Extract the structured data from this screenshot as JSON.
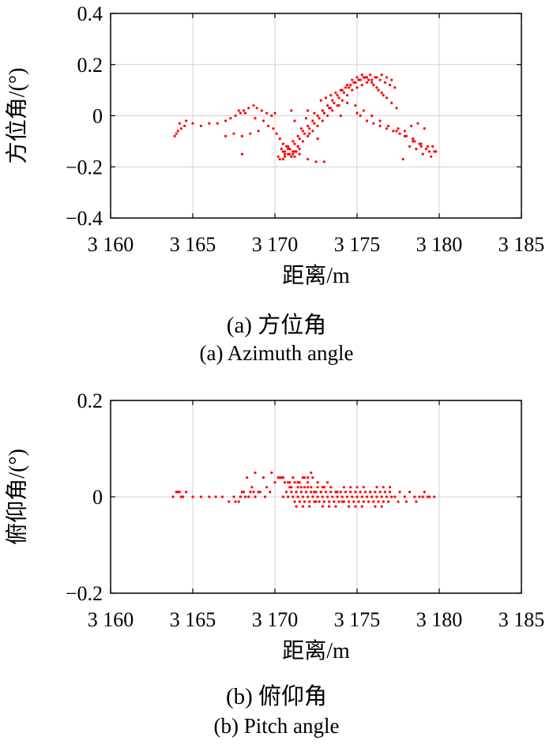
{
  "chart_data": [
    {
      "type": "scatter",
      "title": "",
      "xlabel": "距离/m",
      "ylabel": "方位角/(°)",
      "xlim": [
        3160,
        3185
      ],
      "ylim": [
        -0.4,
        0.4
      ],
      "xticks": [
        3160,
        3165,
        3170,
        3175,
        3180,
        3185
      ],
      "xtick_labels": [
        "3 160",
        "3 165",
        "3 170",
        "3 175",
        "3 180",
        "3 185"
      ],
      "yticks": [
        -0.4,
        -0.2,
        0,
        0.2,
        0.4
      ],
      "ytick_labels": [
        "−0.4",
        "−0.2",
        "0",
        "0.2",
        "0.4"
      ],
      "grid": true,
      "marker_color": "#ff0000",
      "caption_cn": "(a) 方位角",
      "caption_en": "(a) Azimuth angle",
      "series": [
        {
          "x": [
            3163.9,
            3164.1,
            3164.3,
            3164.5,
            3164.2,
            3164.6,
            3164.0,
            3165.0,
            3165.5,
            3166.0,
            3166.5,
            3167.0,
            3167.3,
            3167.6,
            3167.9,
            3168.1,
            3168.4,
            3168.7,
            3168.9,
            3169.2,
            3169.5,
            3169.8,
            3167.0,
            3167.5,
            3168.0,
            3168.5,
            3169.0,
            3167.8,
            3168.2,
            3168.8,
            3169.3,
            3169.6,
            3169.9,
            3170.1,
            3170.3,
            3170.5,
            3170.8,
            3171.1,
            3171.4,
            3171.7,
            3172.0,
            3172.3,
            3172.6,
            3172.9,
            3173.2,
            3173.5,
            3173.8,
            3174.1,
            3174.4,
            3174.7,
            3175.0,
            3175.3,
            3175.6,
            3175.9,
            3176.2,
            3176.5,
            3176.8,
            3177.1,
            3170.6,
            3170.9,
            3171.2,
            3171.5,
            3171.8,
            3172.1,
            3172.4,
            3172.7,
            3173.0,
            3173.3,
            3173.6,
            3173.9,
            3174.2,
            3174.5,
            3174.8,
            3175.1,
            3175.4,
            3175.7,
            3176.0,
            3176.3,
            3176.6,
            3170.2,
            3170.5,
            3170.8,
            3171.1,
            3171.4,
            3171.7,
            3172.0,
            3172.3,
            3172.6,
            3172.9,
            3173.2,
            3173.5,
            3173.8,
            3174.1,
            3174.4,
            3174.7,
            3175.0,
            3175.3,
            3175.6,
            3175.9,
            3176.2,
            3176.5,
            3176.8,
            3177.1,
            3177.4,
            3170.4,
            3170.6,
            3170.8,
            3171.0,
            3171.2,
            3171.4,
            3170.7,
            3170.9,
            3171.1,
            3171.3,
            3170.5,
            3171.0,
            3171.5,
            3172.0,
            3172.5,
            3173.0,
            3171.6,
            3172.1,
            3172.6,
            3171.2,
            3171.9,
            3172.4,
            3172.9,
            3173.4,
            3173.9,
            3174.4,
            3174.9,
            3175.4,
            3175.9,
            3176.4,
            3176.9,
            3177.4,
            3177.9,
            3178.4,
            3178.9,
            3179.4,
            3175.2,
            3175.6,
            3176.0,
            3176.4,
            3176.8,
            3177.2,
            3177.6,
            3178.0,
            3178.4,
            3178.8,
            3179.2,
            3179.6,
            3177.5,
            3177.9,
            3178.3,
            3178.7,
            3179.1,
            3178.5,
            3178.9,
            3179.3,
            3179.7,
            3179.0,
            3179.5,
            3179.8,
            3178.2,
            3178.6,
            3177.8,
            3170.0,
            3171.0,
            3172.0,
            3173.0,
            3174.0,
            3175.0,
            3170.3,
            3170.6,
            3170.9,
            3171.2,
            3171.5,
            3168.0,
            3172.8,
            3173.1,
            3173.4,
            3173.7,
            3174.0,
            3174.3,
            3174.6,
            3174.9,
            3175.2,
            3175.5,
            3175.8,
            3176.1,
            3176.4,
            3176.7,
            3177.0,
            3177.3
          ],
          "y": [
            -0.08,
            -0.06,
            -0.05,
            -0.04,
            -0.03,
            -0.02,
            -0.07,
            -0.03,
            -0.04,
            -0.03,
            -0.03,
            -0.02,
            -0.01,
            0.0,
            0.01,
            0.02,
            0.03,
            0.04,
            0.03,
            0.02,
            0.01,
            0.0,
            -0.08,
            -0.07,
            -0.08,
            -0.07,
            -0.06,
            0.02,
            0.01,
            -0.01,
            -0.02,
            -0.04,
            -0.05,
            -0.07,
            -0.09,
            -0.11,
            -0.13,
            -0.14,
            -0.12,
            -0.1,
            -0.08,
            -0.06,
            -0.04,
            -0.02,
            0.0,
            0.02,
            0.04,
            0.06,
            0.08,
            0.1,
            0.11,
            0.12,
            0.13,
            0.14,
            0.15,
            0.16,
            0.15,
            0.14,
            -0.15,
            -0.13,
            -0.11,
            -0.09,
            -0.07,
            -0.05,
            -0.03,
            -0.01,
            0.01,
            0.03,
            0.05,
            0.07,
            0.09,
            0.11,
            0.13,
            0.14,
            0.15,
            0.14,
            0.12,
            0.1,
            0.08,
            -0.16,
            -0.14,
            -0.12,
            -0.1,
            -0.08,
            -0.06,
            -0.04,
            -0.02,
            0.0,
            0.02,
            0.04,
            0.06,
            0.08,
            0.1,
            0.12,
            0.14,
            0.15,
            0.16,
            0.15,
            0.13,
            0.11,
            0.09,
            0.07,
            0.05,
            0.03,
            -0.13,
            -0.14,
            -0.15,
            -0.16,
            -0.14,
            -0.12,
            -0.12,
            -0.13,
            -0.15,
            -0.14,
            -0.17,
            -0.16,
            -0.15,
            -0.17,
            -0.18,
            -0.18,
            -0.05,
            -0.07,
            -0.09,
            -0.02,
            -0.01,
            0.01,
            0.02,
            0.03,
            0.04,
            0.05,
            0.04,
            0.02,
            0.0,
            -0.02,
            -0.04,
            -0.06,
            -0.08,
            -0.1,
            -0.12,
            -0.14,
            0.0,
            -0.02,
            -0.03,
            -0.04,
            -0.05,
            -0.06,
            -0.07,
            -0.08,
            -0.09,
            -0.11,
            -0.13,
            -0.12,
            -0.05,
            -0.06,
            -0.04,
            -0.03,
            -0.05,
            -0.1,
            -0.11,
            -0.12,
            -0.14,
            -0.15,
            -0.16,
            -0.14,
            -0.12,
            -0.13,
            -0.17,
            0.01,
            0.02,
            0.02,
            0.01,
            0.0,
            0.01,
            -0.17,
            -0.16,
            -0.15,
            -0.16,
            -0.13,
            -0.15,
            0.06,
            0.07,
            0.08,
            0.09,
            0.1,
            0.11,
            0.12,
            0.13,
            0.14,
            0.15,
            0.16,
            0.15,
            0.14,
            0.13,
            0.12,
            0.11
          ]
        }
      ]
    },
    {
      "type": "scatter",
      "title": "",
      "xlabel": "距离/m",
      "ylabel": "俯仰角/(°)",
      "xlim": [
        3160,
        3185
      ],
      "ylim": [
        -0.2,
        0.2
      ],
      "xticks": [
        3160,
        3165,
        3170,
        3175,
        3180,
        3185
      ],
      "xtick_labels": [
        "3 160",
        "3 165",
        "3 170",
        "3 175",
        "3 180",
        "3 185"
      ],
      "yticks": [
        -0.2,
        0,
        0.2
      ],
      "ytick_labels": [
        "−0.2",
        "0",
        "0.2"
      ],
      "grid": true,
      "marker_color": "#ff0000",
      "caption_cn": "(b) 俯仰角",
      "caption_en": "(b) Pitch angle",
      "series": [
        {
          "x": [
            3163.8,
            3164.0,
            3164.2,
            3164.4,
            3164.6,
            3164.1,
            3164.3,
            3165.0,
            3165.5,
            3166.0,
            3166.4,
            3166.8,
            3167.2,
            3167.6,
            3167.9,
            3168.2,
            3168.5,
            3168.8,
            3169.1,
            3169.4,
            3169.7,
            3167.5,
            3167.8,
            3168.1,
            3168.4,
            3168.7,
            3168.0,
            3168.6,
            3169.0,
            3169.5,
            3170.0,
            3170.3,
            3170.6,
            3170.9,
            3170.5,
            3170.8,
            3171.1,
            3171.4,
            3171.7,
            3172.0,
            3172.3,
            3172.6,
            3172.9,
            3173.2,
            3173.5,
            3173.8,
            3174.1,
            3174.4,
            3174.7,
            3175.0,
            3175.3,
            3175.6,
            3175.9,
            3176.2,
            3176.5,
            3176.8,
            3177.1,
            3170.7,
            3171.0,
            3171.3,
            3171.6,
            3171.9,
            3172.2,
            3172.5,
            3172.8,
            3173.1,
            3173.4,
            3173.7,
            3174.0,
            3174.3,
            3174.6,
            3174.9,
            3175.2,
            3175.5,
            3175.8,
            3176.1,
            3176.4,
            3176.7,
            3177.0,
            3171.2,
            3171.5,
            3171.8,
            3172.1,
            3172.4,
            3172.7,
            3173.0,
            3173.3,
            3173.6,
            3173.9,
            3174.2,
            3174.5,
            3174.8,
            3175.1,
            3175.4,
            3175.7,
            3176.0,
            3176.3,
            3176.6,
            3176.9,
            3171.0,
            3171.4,
            3171.8,
            3172.2,
            3172.6,
            3173.0,
            3173.4,
            3173.8,
            3174.2,
            3174.6,
            3175.0,
            3175.4,
            3175.8,
            3176.2,
            3176.6,
            3177.0,
            3171.3,
            3171.7,
            3172.1,
            3172.5,
            3172.9,
            3173.3,
            3173.7,
            3174.1,
            3174.5,
            3174.9,
            3175.3,
            3175.7,
            3176.1,
            3176.5,
            3176.9,
            3170.8,
            3171.1,
            3171.4,
            3171.7,
            3172.0,
            3172.3,
            3172.6,
            3172.9,
            3170.2,
            3170.5,
            3170.9,
            3171.2,
            3171.6,
            3172.0,
            3172.4,
            3172.8,
            3171.8,
            3172.2,
            3177.3,
            3177.6,
            3177.9,
            3178.2,
            3178.5,
            3178.8,
            3179.1,
            3179.4,
            3179.7,
            3177.5,
            3178.0,
            3178.6,
            3179.0,
            3179.3,
            3168.3,
            3168.8,
            3169.3,
            3169.8,
            3172.0,
            3173.2,
            3171.5,
            3170.4
          ],
          "y": [
            0.0,
            0.01,
            0.01,
            0.0,
            0.01,
            0.01,
            0.0,
            0.0,
            0.0,
            0.0,
            0.0,
            0.0,
            -0.01,
            -0.01,
            0.0,
            0.0,
            0.01,
            0.0,
            0.01,
            0.0,
            0.01,
            0.0,
            -0.01,
            0.01,
            0.0,
            0.01,
            0.01,
            0.02,
            0.01,
            0.02,
            0.03,
            0.04,
            0.03,
            0.02,
            0.0,
            0.0,
            0.0,
            0.0,
            0.0,
            0.0,
            0.0,
            0.0,
            0.0,
            0.0,
            0.0,
            0.0,
            0.0,
            0.0,
            0.0,
            0.0,
            0.0,
            0.0,
            0.0,
            0.0,
            0.0,
            0.0,
            0.0,
            0.01,
            0.01,
            0.01,
            0.01,
            0.01,
            0.01,
            0.01,
            0.01,
            0.01,
            0.01,
            0.01,
            0.01,
            0.01,
            0.01,
            0.01,
            0.01,
            0.01,
            0.01,
            0.01,
            0.01,
            0.01,
            0.01,
            -0.01,
            -0.01,
            -0.01,
            -0.01,
            -0.01,
            -0.01,
            -0.01,
            -0.01,
            -0.01,
            -0.01,
            -0.01,
            -0.01,
            -0.01,
            -0.01,
            -0.01,
            -0.01,
            -0.01,
            -0.01,
            -0.01,
            -0.01,
            0.02,
            0.02,
            0.02,
            0.02,
            0.02,
            0.02,
            0.02,
            0.01,
            0.02,
            0.02,
            0.02,
            0.02,
            0.01,
            0.02,
            0.02,
            0.02,
            -0.02,
            -0.02,
            -0.02,
            -0.01,
            -0.02,
            -0.02,
            -0.02,
            -0.01,
            -0.02,
            -0.02,
            -0.02,
            -0.01,
            -0.02,
            -0.02,
            -0.01,
            0.03,
            0.04,
            0.03,
            0.04,
            0.03,
            0.04,
            0.03,
            0.02,
            0.04,
            0.04,
            0.03,
            0.03,
            0.02,
            0.02,
            0.01,
            0.01,
            0.04,
            0.05,
            0.0,
            0.01,
            0.0,
            0.01,
            0.0,
            0.0,
            0.01,
            0.0,
            0.0,
            -0.01,
            -0.01,
            -0.01,
            0.0,
            0.0,
            0.04,
            0.05,
            0.04,
            0.05,
            0.04,
            0.03,
            0.03,
            0.04
          ]
        }
      ]
    }
  ]
}
